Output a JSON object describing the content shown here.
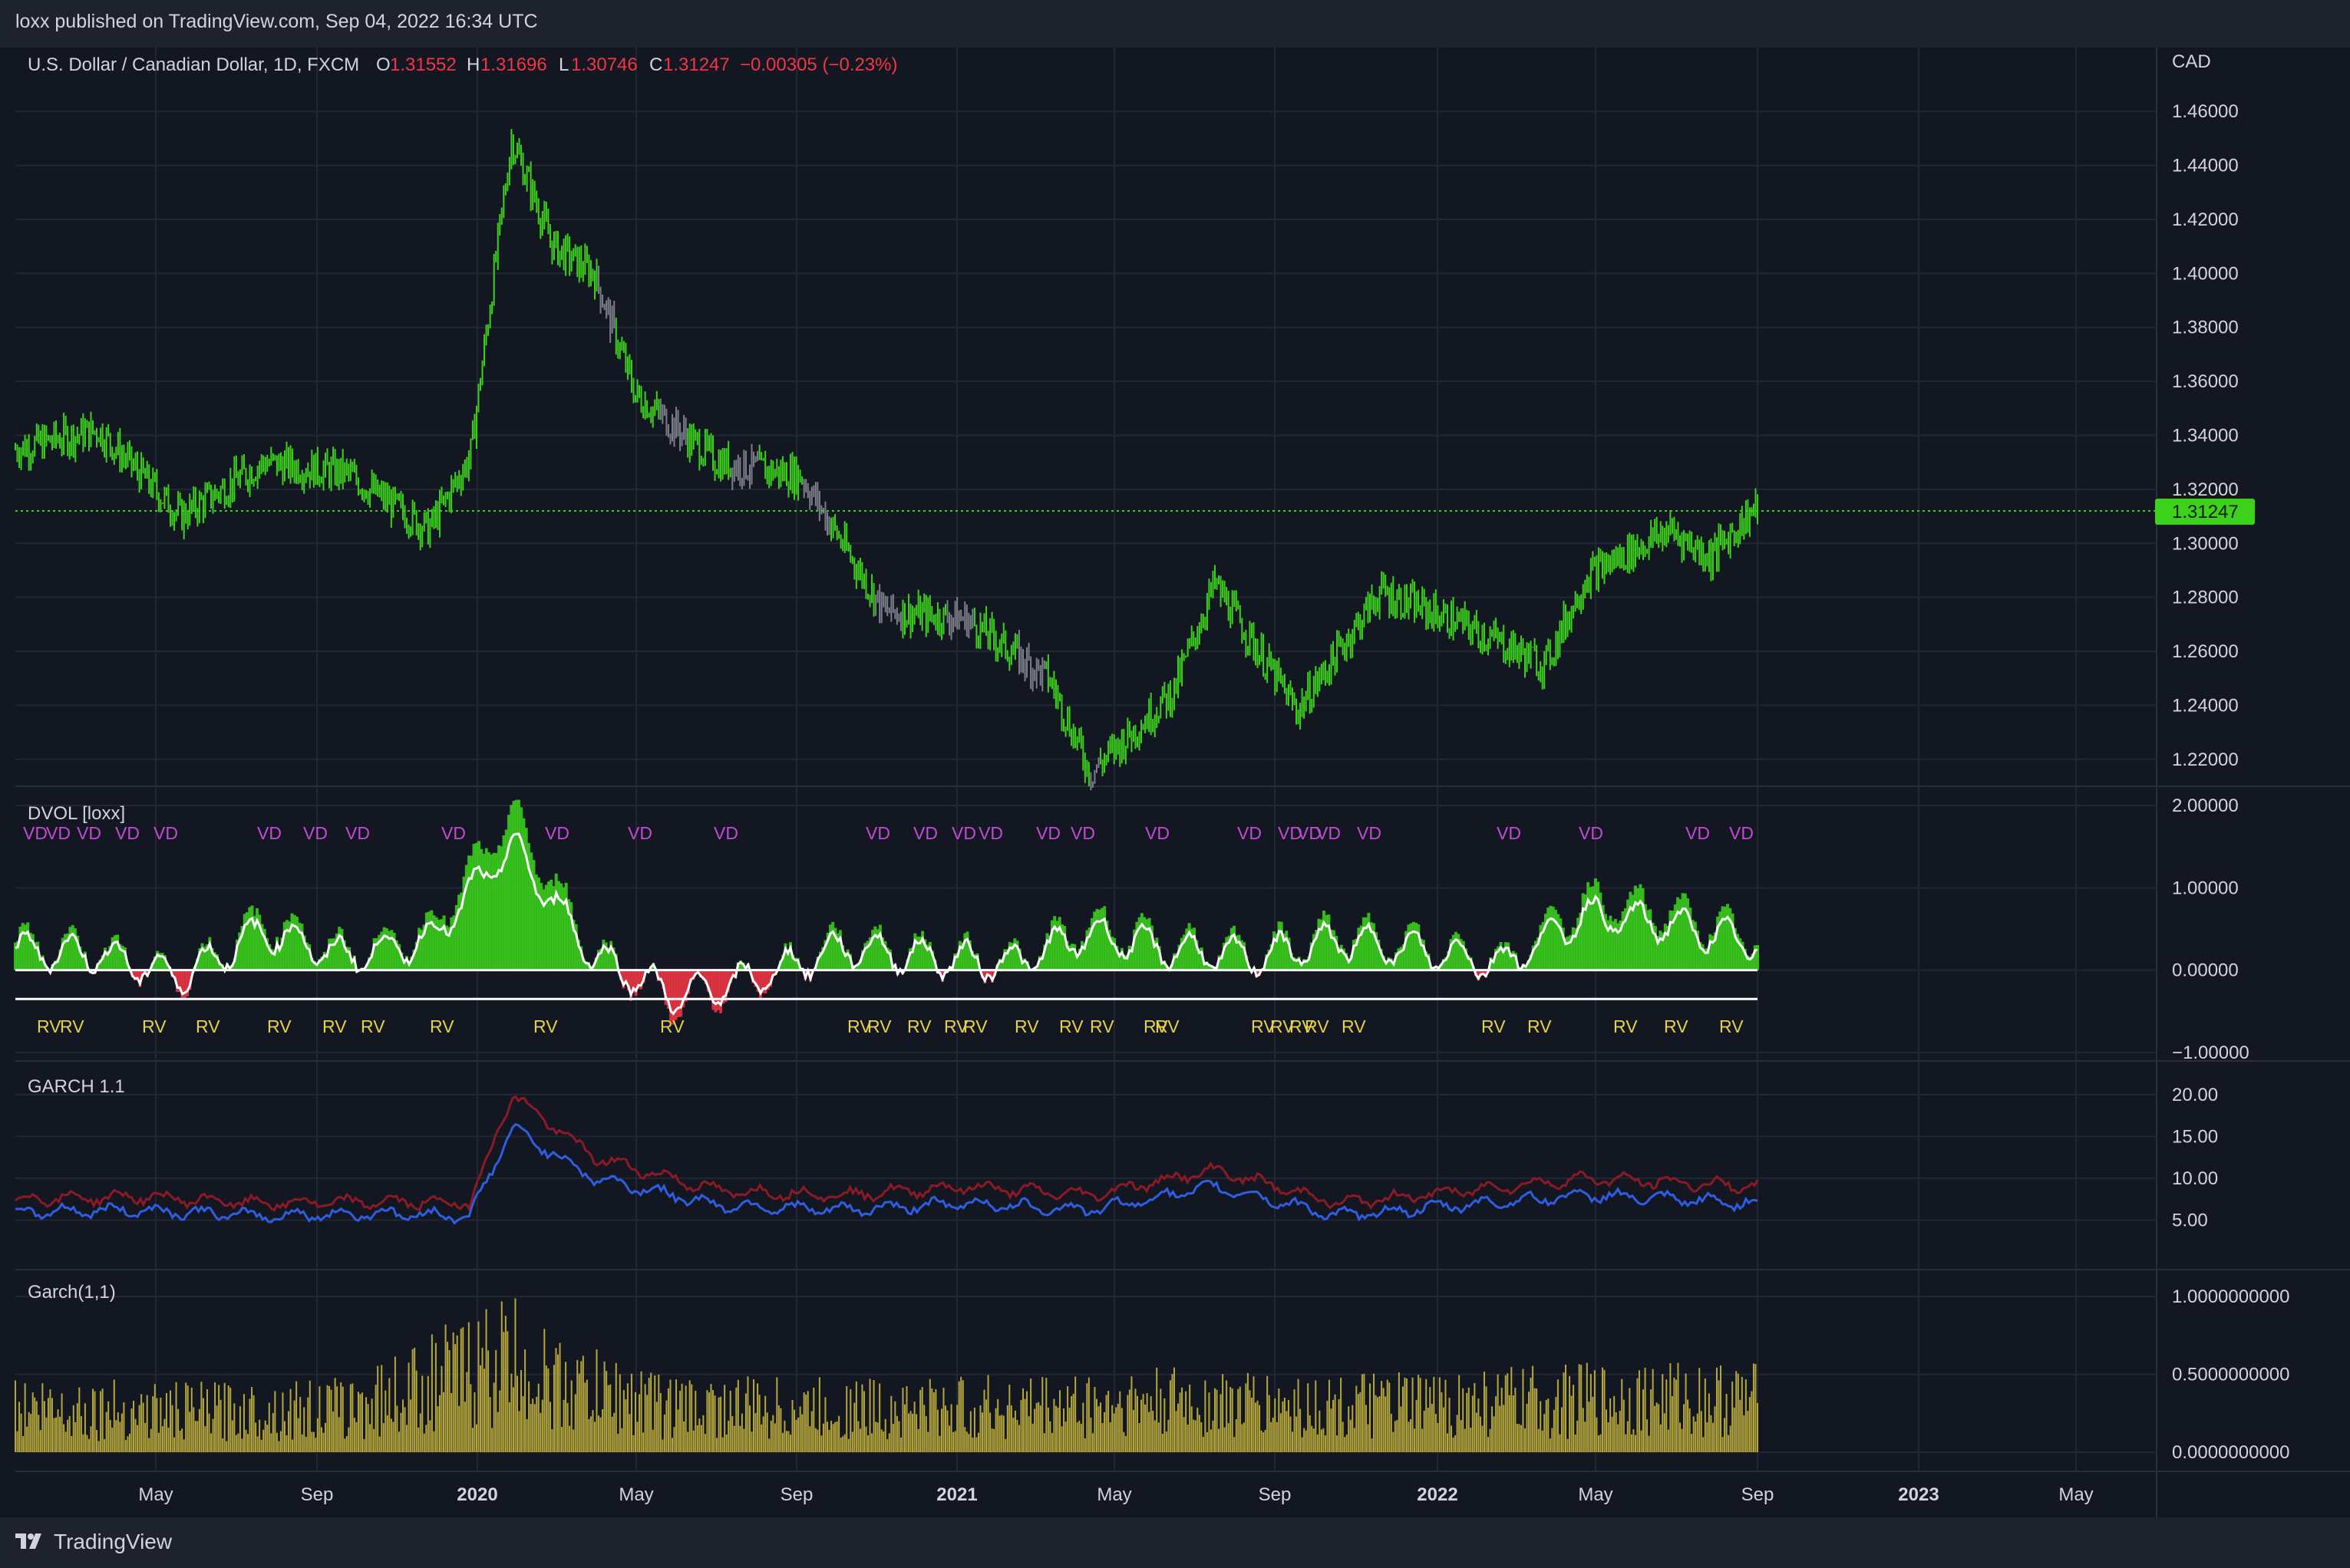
{
  "publisher": "loxx published on TradingView.com, Sep 04, 2022 16:34 UTC",
  "brand": "TradingView",
  "colors": {
    "bg": "#131722",
    "grid": "#232733",
    "up": "#3cd21c",
    "neutral": "#7c7f88",
    "down": "#f23645",
    "marker": "#c34ad6",
    "rv": "#e5d04a",
    "garch_red": "#8b1a24",
    "garch_blue": "#2f5de0",
    "garch_bar": "#b5a73c",
    "last_price": "#3cd21c"
  },
  "main": {
    "symbol": "U.S. Dollar / Canadian Dollar, 1D, FXCM",
    "o_label": "O",
    "o_value": "1.31552",
    "h_label": "H",
    "h_value": "1.31696",
    "l_label": "L",
    "l_value": "1.30746",
    "c_label": "C",
    "c_value": "1.31247",
    "change": "−0.00305 (−0.23%)",
    "currency": "CAD",
    "last_price": "1.31247",
    "y_ticks": [
      "1.46000",
      "1.44000",
      "1.42000",
      "1.40000",
      "1.38000",
      "1.36000",
      "1.34000",
      "1.32000",
      "1.30000",
      "1.28000",
      "1.26000",
      "1.24000",
      "1.22000"
    ]
  },
  "dvol": {
    "title": "DVOL [loxx]",
    "y_ticks": [
      "2.00000",
      "1.00000",
      "0.00000",
      "−1.00000"
    ],
    "marker_top": "VD",
    "marker_bottom": "RV"
  },
  "garch11": {
    "title": "GARCH 1.1",
    "y_ticks": [
      "20.00",
      "15.00",
      "10.00",
      "5.00"
    ]
  },
  "garch_bars": {
    "title": "Garch(1,1)",
    "y_ticks": [
      "1.0000000000",
      "0.5000000000",
      "0.0000000000"
    ]
  },
  "x_axis": [
    "May",
    "Sep",
    "2020",
    "May",
    "Sep",
    "2021",
    "May",
    "Sep",
    "2022",
    "May",
    "Sep",
    "2023",
    "May"
  ],
  "chart_data": [
    {
      "type": "line",
      "title": "U.S. Dollar / Canadian Dollar, 1D, FXCM",
      "ylabel": "CAD",
      "ylim": [
        1.21,
        1.47
      ],
      "x": [
        "2019-03",
        "2019-05",
        "2019-07",
        "2019-09",
        "2019-11",
        "2020-01",
        "2020-02",
        "2020-03",
        "2020-04",
        "2020-05",
        "2020-06",
        "2020-08",
        "2020-10",
        "2020-12",
        "2021-02",
        "2021-04",
        "2021-05",
        "2021-07",
        "2021-08",
        "2021-10",
        "2021-12",
        "2022-02",
        "2022-04",
        "2022-05",
        "2022-07",
        "2022-08",
        "2022-09"
      ],
      "series": [
        {
          "values": [
            1.335,
            1.342,
            1.31,
            1.33,
            1.326,
            1.305,
            1.332,
            1.45,
            1.41,
            1.4,
            1.355,
            1.33,
            1.325,
            1.275,
            1.272,
            1.25,
            1.215,
            1.245,
            1.285,
            1.238,
            1.282,
            1.27,
            1.255,
            1.288,
            1.305,
            1.295,
            1.312
          ]
        }
      ]
    },
    {
      "type": "area",
      "title": "DVOL [loxx]",
      "ylim": [
        -1,
        2
      ],
      "x": [
        "2019-03",
        "2019-05",
        "2019-07",
        "2019-09",
        "2019-11",
        "2020-01",
        "2020-03",
        "2020-05",
        "2020-07",
        "2020-09",
        "2020-11",
        "2021-01",
        "2021-03",
        "2021-05",
        "2021-07",
        "2021-09",
        "2021-11",
        "2022-01",
        "2022-03",
        "2022-05",
        "2022-07",
        "2022-09"
      ],
      "series": [
        {
          "values": [
            0.3,
            0.25,
            -0.1,
            0.6,
            0.2,
            0.45,
            1.9,
            0.2,
            -0.4,
            -0.1,
            0.35,
            0.2,
            0.1,
            0.55,
            0.3,
            0.2,
            0.45,
            0.3,
            0.1,
            0.85,
            0.7,
            0.4
          ]
        }
      ]
    },
    {
      "type": "line",
      "title": "GARCH 1.1",
      "ylim": [
        0,
        22
      ],
      "x": [
        "2019-03",
        "2019-06",
        "2019-09",
        "2019-12",
        "2020-02",
        "2020-03",
        "2020-05",
        "2020-08",
        "2020-11",
        "2021-02",
        "2021-05",
        "2021-08",
        "2021-11",
        "2022-02",
        "2022-05",
        "2022-09"
      ],
      "series": [
        {
          "values": [
            7.5,
            7.8,
            7.0,
            7.2,
            7.0,
            20.0,
            12.5,
            8.5,
            8.0,
            9.0,
            8.0,
            11.0,
            7.0,
            8.5,
            10.0,
            9.0
          ]
        },
        {
          "values": [
            6.0,
            6.2,
            5.5,
            5.8,
            5.5,
            16.0,
            10.0,
            6.8,
            6.2,
            7.0,
            6.2,
            9.0,
            5.5,
            6.8,
            8.0,
            7.0
          ]
        }
      ]
    },
    {
      "type": "bar",
      "title": "Garch(1,1)",
      "ylim": [
        0,
        1.1
      ],
      "categories": [
        "2019-03",
        "2019-07",
        "2019-11",
        "2020-03",
        "2020-04",
        "2020-07",
        "2020-11",
        "2021-03",
        "2021-07",
        "2021-11",
        "2022-03",
        "2022-07",
        "2022-09"
      ],
      "values": [
        0.5,
        0.45,
        0.48,
        1.05,
        0.75,
        0.5,
        0.48,
        0.5,
        0.55,
        0.5,
        0.55,
        0.6,
        0.58
      ]
    }
  ]
}
